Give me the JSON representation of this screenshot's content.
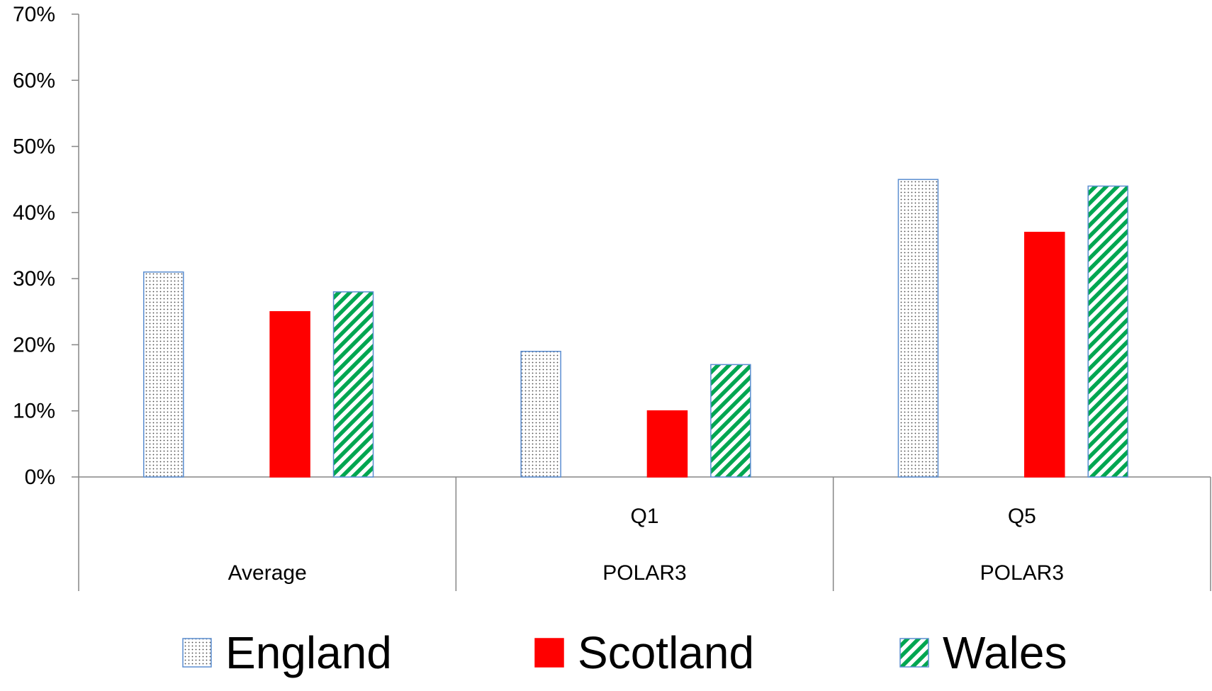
{
  "chart_data": {
    "type": "bar",
    "categories": [
      {
        "lines": [
          "",
          "Average"
        ]
      },
      {
        "lines": [
          "Q1",
          "POLAR3"
        ]
      },
      {
        "lines": [
          "Q5",
          "POLAR3"
        ]
      }
    ],
    "series": [
      {
        "name": "England",
        "values": [
          31,
          19,
          45
        ],
        "pattern": "dots",
        "color": "#ffffff",
        "border_color": "#5b8ed1",
        "mark_color": "#444444"
      },
      {
        "name": "Scotland",
        "values": [
          25,
          10,
          37
        ],
        "pattern": "solid",
        "color": "#ff0000",
        "border_color": "#ff0000"
      },
      {
        "name": "Wales",
        "values": [
          28,
          17,
          44
        ],
        "pattern": "diagonal-stripes",
        "color": "#00a651",
        "border_color": "#5b8ed1"
      }
    ],
    "y_ticks": [
      "0%",
      "10%",
      "20%",
      "30%",
      "40%",
      "50%",
      "60%",
      "70%"
    ],
    "ylim": [
      0,
      70
    ],
    "y_unit": "%",
    "grid": false,
    "legend_position": "bottom"
  }
}
